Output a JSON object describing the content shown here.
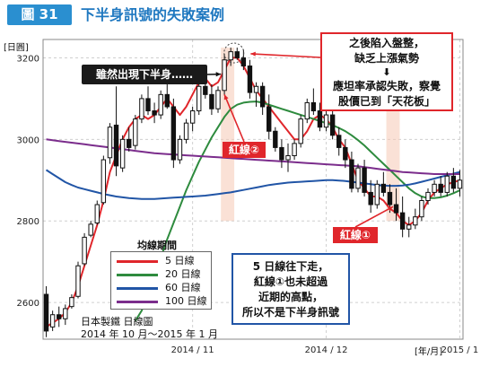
{
  "figure": {
    "number": "圖 31",
    "title": "下半身訊號的失敗案例"
  },
  "chart_data": {
    "type": "candlestick",
    "ylabel": "[日圓]",
    "ylim": [
      2510,
      3245
    ],
    "yticks": [
      2600,
      2800,
      3000,
      3200
    ],
    "xticks": [
      {
        "label": "2014 / 11",
        "index": 23
      },
      {
        "label": "2014 / 12",
        "index": 44
      },
      {
        "label": "2015 / 1",
        "index": 65
      }
    ],
    "x_unit_label": "[年/月]",
    "grid": true,
    "source_line1": "日本製鐵 日線圖",
    "source_line2": "2014 年 10 月～2015 年 1 月",
    "legend_title": "均線期間",
    "legend": [
      {
        "name": "5 日線",
        "color": "#e0262b"
      },
      {
        "name": "20 日線",
        "color": "#2e8b3e"
      },
      {
        "name": "60 日線",
        "color": "#2155a6"
      },
      {
        "name": "100 日線",
        "color": "#7b2d8c"
      }
    ],
    "candles": [
      [
        2620,
        2640,
        2515,
        2530
      ],
      [
        2540,
        2580,
        2530,
        2570
      ],
      [
        2570,
        2590,
        2540,
        2560
      ],
      [
        2560,
        2595,
        2545,
        2585
      ],
      [
        2590,
        2620,
        2585,
        2612
      ],
      [
        2615,
        2700,
        2610,
        2690
      ],
      [
        2695,
        2770,
        2690,
        2760
      ],
      [
        2765,
        2800,
        2760,
        2792
      ],
      [
        2795,
        2850,
        2790,
        2840
      ],
      [
        2845,
        2960,
        2840,
        2950
      ],
      [
        2955,
        3040,
        2940,
        3030
      ],
      [
        3035,
        3130,
        2910,
        2935
      ],
      [
        2930,
        3010,
        2920,
        3000
      ],
      [
        3000,
        3030,
        2970,
        2980
      ],
      [
        2985,
        3060,
        2975,
        3050
      ],
      [
        3050,
        3110,
        3040,
        3100
      ],
      [
        3100,
        3130,
        3060,
        3070
      ],
      [
        3070,
        3090,
        3040,
        3060
      ],
      [
        3060,
        3120,
        3050,
        3110
      ],
      [
        3110,
        3140,
        3075,
        3080
      ],
      [
        3080,
        3100,
        2930,
        2950
      ],
      [
        2950,
        3010,
        2940,
        3000
      ],
      [
        3000,
        3050,
        2990,
        3040
      ],
      [
        3040,
        3080,
        3020,
        3070
      ],
      [
        3070,
        3140,
        3060,
        3130
      ],
      [
        3130,
        3150,
        3100,
        3110
      ],
      [
        3110,
        3135,
        3060,
        3075
      ],
      [
        3075,
        3130,
        3065,
        3120
      ],
      [
        3120,
        3210,
        3110,
        3195
      ],
      [
        3195,
        3225,
        3180,
        3215
      ],
      [
        3215,
        3225,
        3195,
        3200
      ],
      [
        3200,
        3220,
        3170,
        3180
      ],
      [
        3180,
        3195,
        3100,
        3115
      ],
      [
        3115,
        3140,
        3080,
        3130
      ],
      [
        3130,
        3140,
        3060,
        3080
      ],
      [
        3080,
        3110,
        3000,
        3020
      ],
      [
        3020,
        3030,
        2970,
        2980
      ],
      [
        2980,
        3000,
        2930,
        2950
      ],
      [
        2950,
        2990,
        2920,
        2960
      ],
      [
        2960,
        3000,
        2950,
        2990
      ],
      [
        2990,
        3060,
        2980,
        3050
      ],
      [
        3050,
        3100,
        3040,
        3090
      ],
      [
        3090,
        3125,
        3060,
        3070
      ],
      [
        3070,
        3090,
        3020,
        3030
      ],
      [
        3030,
        3070,
        3020,
        3060
      ],
      [
        3060,
        3080,
        3000,
        3010
      ],
      [
        3010,
        3030,
        2960,
        2980
      ],
      [
        2980,
        3000,
        2930,
        2950
      ],
      [
        2950,
        2970,
        2870,
        2880
      ],
      [
        2880,
        2940,
        2870,
        2930
      ],
      [
        2930,
        2950,
        2860,
        2870
      ],
      [
        2870,
        2900,
        2820,
        2840
      ],
      [
        2840,
        2900,
        2830,
        2890
      ],
      [
        2890,
        2920,
        2860,
        2870
      ],
      [
        2870,
        2890,
        2820,
        2840
      ],
      [
        2840,
        2880,
        2800,
        2820
      ],
      [
        2820,
        2860,
        2760,
        2780
      ],
      [
        2780,
        2810,
        2760,
        2790
      ],
      [
        2790,
        2830,
        2780,
        2810
      ],
      [
        2810,
        2860,
        2800,
        2850
      ],
      [
        2850,
        2880,
        2840,
        2870
      ],
      [
        2870,
        2900,
        2860,
        2890
      ],
      [
        2890,
        2910,
        2860,
        2870
      ],
      [
        2870,
        2920,
        2860,
        2910
      ],
      [
        2910,
        2930,
        2870,
        2880
      ],
      [
        2880,
        2925,
        2860,
        2900
      ]
    ],
    "moving_averages": [
      {
        "period": 5,
        "color": "#e0262b",
        "values": [
          2540,
          2550,
          2560,
          2575,
          2600,
          2640,
          2690,
          2740,
          2790,
          2850,
          2920,
          2960,
          3000,
          3030,
          3050,
          3060,
          3050,
          3060,
          3080,
          3100,
          3080,
          3060,
          3080,
          3110,
          3140,
          3150,
          3130,
          3140,
          3170,
          3200,
          3200,
          3180,
          3150,
          3120,
          3100,
          3080,
          3060,
          3040,
          3020,
          3000,
          3000,
          3020,
          3050,
          3060,
          3050,
          3030,
          3000,
          2980,
          2940,
          2900,
          2880,
          2860,
          2860,
          2850,
          2830,
          2820,
          2800,
          2790,
          2800,
          2820,
          2850,
          2870,
          2880,
          2890,
          2895,
          2900
        ]
      },
      {
        "period": 20,
        "color": "#2e8b3e",
        "values": [
          null,
          null,
          null,
          null,
          null,
          null,
          null,
          null,
          null,
          null,
          null,
          null,
          null,
          null,
          2555,
          2580,
          2620,
          2665,
          2710,
          2755,
          2795,
          2835,
          2875,
          2910,
          2945,
          2975,
          3005,
          3030,
          3055,
          3075,
          3085,
          3090,
          3092,
          3093,
          3090,
          3085,
          3080,
          3075,
          3070,
          3065,
          3060,
          3055,
          3050,
          3045,
          3040,
          3035,
          3028,
          3020,
          3010,
          2998,
          2985,
          2970,
          2955,
          2940,
          2925,
          2910,
          2895,
          2880,
          2868,
          2860,
          2856,
          2856,
          2858,
          2862,
          2868,
          2875
        ]
      },
      {
        "period": 60,
        "color": "#2155a6",
        "values": [
          2925,
          2915,
          2905,
          2895,
          2888,
          2882,
          2878,
          2874,
          2870,
          2866,
          2863,
          2860,
          2858,
          2856,
          2855,
          2854,
          2854,
          2854,
          2855,
          2856,
          2857,
          2858,
          2859,
          2860,
          2861,
          2862,
          2864,
          2866,
          2868,
          2870,
          2873,
          2876,
          2879,
          2882,
          2885,
          2888,
          2890,
          2892,
          2894,
          2895,
          2896,
          2897,
          2898,
          2899,
          2900,
          2900,
          2899,
          2898,
          2896,
          2894,
          2892,
          2890,
          2888,
          2887,
          2886,
          2886,
          2887,
          2889,
          2892,
          2896,
          2900,
          2904,
          2908,
          2912,
          2916,
          2920
        ]
      },
      {
        "period": 100,
        "color": "#7b2d8c",
        "values": [
          3000,
          2998,
          2996,
          2994,
          2992,
          2990,
          2988,
          2986,
          2984,
          2982,
          2980,
          2978,
          2976,
          2974,
          2972,
          2970,
          2968,
          2966,
          2965,
          2964,
          2963,
          2962,
          2961,
          2960,
          2959,
          2958,
          2957,
          2956,
          2955,
          2954,
          2953,
          2952,
          2951,
          2950,
          2949,
          2948,
          2947,
          2946,
          2945,
          2944,
          2943,
          2942,
          2941,
          2940,
          2939,
          2938,
          2937,
          2936,
          2935,
          2934,
          2932,
          2930,
          2928,
          2926,
          2924,
          2922,
          2920,
          2919,
          2918,
          2917,
          2916,
          2915,
          2915,
          2915,
          2915,
          2915
        ]
      }
    ],
    "annotations": {
      "label_top_left": "雖然出現下半身……",
      "red_line_2": "紅線②",
      "red_line_1": "紅線①",
      "callout_top_right": [
        {
          "text": "之後陷入盤整，"
        },
        {
          "text": "缺乏上漲氣勢"
        },
        {
          "text": "⬇"
        },
        {
          "text": "應坦率承認失敗，察覺"
        },
        {
          "text": "股價已到「天花板」"
        }
      ],
      "callout_bottom": [
        {
          "text": "5 日線往下走，"
        },
        {
          "text": "紅線①也未超過"
        },
        {
          "text": "近期的高點，"
        },
        {
          "text": "所以不是下半身訊號"
        }
      ]
    }
  }
}
